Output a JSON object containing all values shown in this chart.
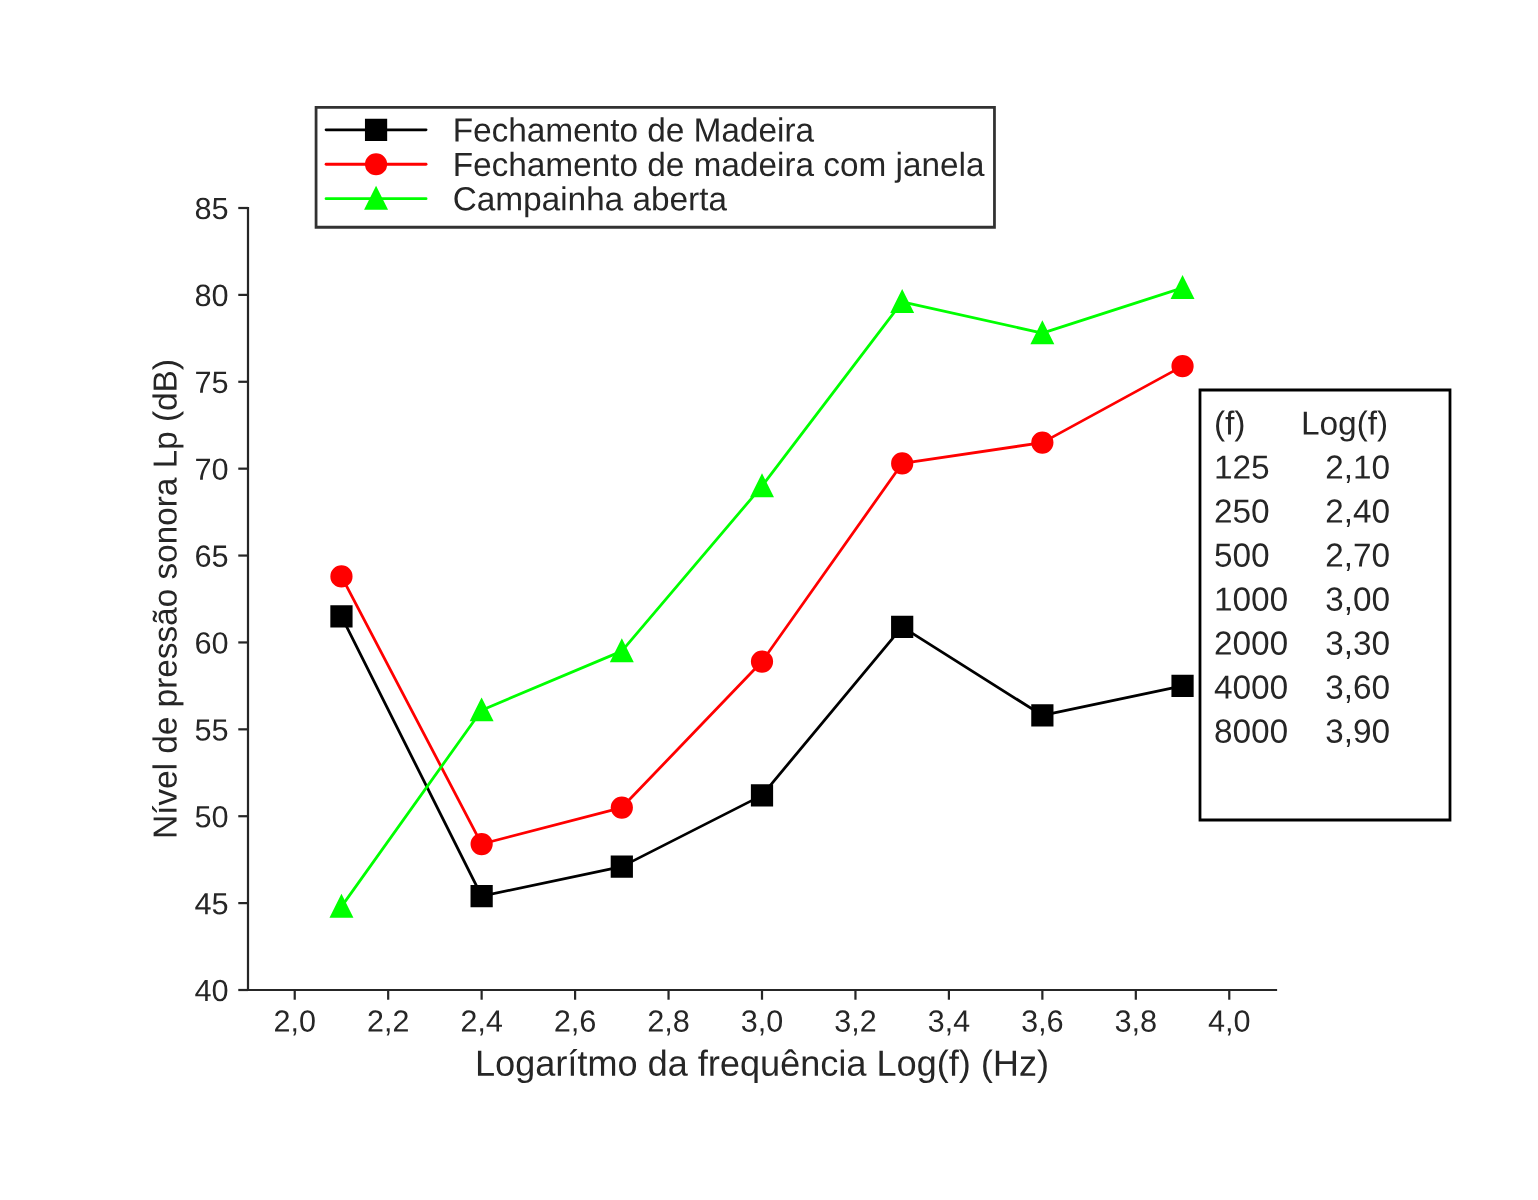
{
  "chart_data": {
    "type": "line",
    "xlabel": "Logarítmo da frequência Log(f) (Hz)",
    "ylabel": "Nível de pressão sonora Lp (dB)",
    "x": [
      2.1,
      2.4,
      2.7,
      3.0,
      3.3,
      3.6,
      3.9
    ],
    "series": [
      {
        "name": "Fechamento de Madeira",
        "color": "#000000",
        "marker": "square",
        "values": [
          61.5,
          45.4,
          47.1,
          51.2,
          60.9,
          55.8,
          57.5
        ]
      },
      {
        "name": "Fechamento de madeira com janela",
        "color": "#ff0000",
        "marker": "circle",
        "values": [
          63.8,
          48.4,
          50.5,
          58.9,
          70.3,
          71.5,
          75.9
        ]
      },
      {
        "name": "Campainha aberta",
        "color": "#00ff00",
        "marker": "triangle",
        "values": [
          44.8,
          56.1,
          59.5,
          69.0,
          79.6,
          77.8,
          80.4
        ]
      }
    ],
    "xlim": [
      1.9,
      4.1
    ],
    "ylim": [
      40,
      85
    ],
    "xticks": [
      {
        "value": 2.0,
        "label": "2,0"
      },
      {
        "value": 2.2,
        "label": "2,2"
      },
      {
        "value": 2.4,
        "label": "2,4"
      },
      {
        "value": 2.6,
        "label": "2,6"
      },
      {
        "value": 2.8,
        "label": "2,8"
      },
      {
        "value": 3.0,
        "label": "3,0"
      },
      {
        "value": 3.2,
        "label": "3,2"
      },
      {
        "value": 3.4,
        "label": "3,4"
      },
      {
        "value": 3.6,
        "label": "3,6"
      },
      {
        "value": 3.8,
        "label": "3,8"
      },
      {
        "value": 4.0,
        "label": "4,0"
      }
    ],
    "yticks": [
      40,
      45,
      50,
      55,
      60,
      65,
      70,
      75,
      80,
      85
    ],
    "grid": false,
    "legend": "top left",
    "annotations": [
      "(f)      Log(f)",
      "125      2,10",
      "250      2,40",
      "500      2,70",
      "1000    3,00",
      "2000    3,30",
      "4000    3,60",
      "8000    3,90"
    ]
  }
}
